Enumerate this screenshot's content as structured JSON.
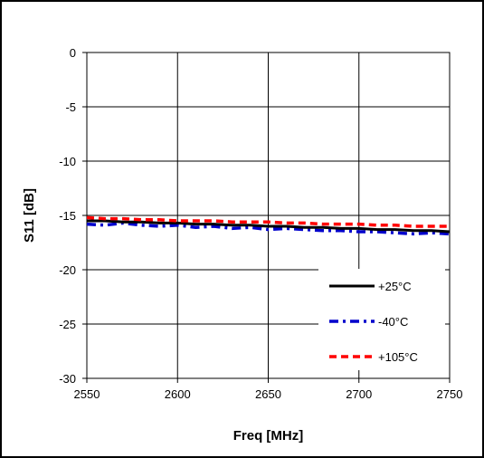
{
  "chart_data": {
    "type": "line",
    "title": "",
    "xlabel": "Freq [MHz]",
    "ylabel": "S11 [dB]",
    "xlim": [
      2550,
      2750
    ],
    "ylim": [
      -30,
      0
    ],
    "x_ticks": [
      2550,
      2600,
      2650,
      2700,
      2750
    ],
    "y_ticks": [
      0,
      -5,
      -10,
      -15,
      -20,
      -25,
      -30
    ],
    "grid": true,
    "legend_position": "bottom-right",
    "x": [
      2550,
      2560,
      2570,
      2580,
      2590,
      2600,
      2610,
      2620,
      2630,
      2640,
      2650,
      2660,
      2670,
      2680,
      2690,
      2700,
      2710,
      2720,
      2730,
      2740,
      2750
    ],
    "series": [
      {
        "name": "+25°C",
        "color": "#000000",
        "style": "solid",
        "values": [
          -15.5,
          -15.5,
          -15.6,
          -15.6,
          -15.7,
          -15.7,
          -15.8,
          -15.8,
          -15.9,
          -15.9,
          -16.0,
          -16.0,
          -16.1,
          -16.1,
          -16.2,
          -16.2,
          -16.3,
          -16.3,
          -16.4,
          -16.4,
          -16.5
        ]
      },
      {
        "name": "-40°C",
        "color": "#0000cc",
        "style": "dashdot",
        "values": [
          -15.8,
          -15.9,
          -15.7,
          -15.9,
          -16.0,
          -15.9,
          -16.1,
          -16.0,
          -16.2,
          -16.1,
          -16.3,
          -16.2,
          -16.3,
          -16.4,
          -16.4,
          -16.5,
          -16.5,
          -16.6,
          -16.7,
          -16.6,
          -16.7
        ]
      },
      {
        "name": "+105°C",
        "color": "#ff0000",
        "style": "dashed",
        "values": [
          -15.2,
          -15.3,
          -15.3,
          -15.4,
          -15.4,
          -15.5,
          -15.5,
          -15.5,
          -15.6,
          -15.6,
          -15.6,
          -15.7,
          -15.7,
          -15.8,
          -15.8,
          -15.8,
          -15.9,
          -15.9,
          -16.0,
          -16.0,
          -16.0
        ]
      }
    ]
  }
}
